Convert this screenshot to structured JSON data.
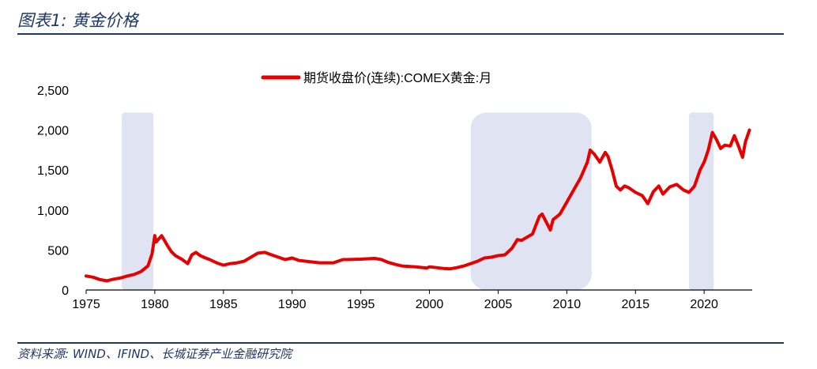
{
  "header": {
    "title": "图表1:  黄金价格"
  },
  "footer": {
    "source": "资料来源: WIND、IFIND、长城证券产业金融研究院"
  },
  "chart_data": {
    "type": "line",
    "title": "",
    "xlabel": "",
    "ylabel": "",
    "xlim": [
      1975,
      2023.5
    ],
    "ylim": [
      0,
      2500
    ],
    "grid": false,
    "legend_position": "top-center",
    "x_ticks": [
      1975,
      1980,
      1985,
      1990,
      1995,
      2000,
      2005,
      2010,
      2015,
      2020
    ],
    "x_tick_labels": [
      "1975",
      "1980",
      "1985",
      "1990",
      "1995",
      "2000",
      "2005",
      "2010",
      "2015",
      "2020"
    ],
    "y_ticks": [
      0,
      500,
      1000,
      1500,
      2000,
      2500
    ],
    "y_tick_labels": [
      "0",
      "500",
      "1,000",
      "1,500",
      "2,000",
      "2,500"
    ],
    "shaded_periods": [
      {
        "start": 1977.6,
        "end": 1979.9
      },
      {
        "start": 2003.0,
        "end": 2011.8
      },
      {
        "start": 2018.9,
        "end": 2020.7
      }
    ],
    "series": [
      {
        "name": "期货收盘价(连续):COMEX黄金:月",
        "color": "#e60000",
        "x": [
          1975.0,
          1975.5,
          1976.0,
          1976.5,
          1977.0,
          1977.5,
          1978.0,
          1978.5,
          1979.0,
          1979.5,
          1979.8,
          1980.0,
          1980.1,
          1980.3,
          1980.5,
          1980.7,
          1980.9,
          1981.2,
          1981.5,
          1982.0,
          1982.4,
          1982.7,
          1983.0,
          1983.3,
          1983.7,
          1984.0,
          1984.5,
          1985.0,
          1985.5,
          1986.0,
          1986.5,
          1987.0,
          1987.5,
          1988.0,
          1988.5,
          1989.0,
          1989.5,
          1990.0,
          1990.5,
          1991.0,
          1992.0,
          1993.0,
          1993.7,
          1994.0,
          1995.0,
          1996.0,
          1996.5,
          1997.0,
          1997.5,
          1998.0,
          1999.0,
          1999.8,
          2000.0,
          2001.0,
          2001.5,
          2002.0,
          2002.5,
          2003.0,
          2003.5,
          2004.0,
          2004.5,
          2005.0,
          2005.5,
          2006.0,
          2006.4,
          2006.7,
          2007.0,
          2007.5,
          2008.0,
          2008.2,
          2008.8,
          2009.0,
          2009.5,
          2010.0,
          2010.5,
          2011.0,
          2011.5,
          2011.7,
          2012.0,
          2012.4,
          2012.8,
          2013.0,
          2013.3,
          2013.6,
          2013.9,
          2014.2,
          2014.5,
          2015.0,
          2015.5,
          2015.9,
          2016.3,
          2016.7,
          2017.0,
          2017.5,
          2018.0,
          2018.5,
          2018.9,
          2019.3,
          2019.7,
          2020.0,
          2020.3,
          2020.6,
          2020.9,
          2021.2,
          2021.5,
          2021.9,
          2022.2,
          2022.5,
          2022.8,
          2023.0,
          2023.2,
          2023.3
        ],
        "y": [
          175,
          160,
          130,
          115,
          135,
          150,
          175,
          195,
          230,
          300,
          450,
          680,
          600,
          640,
          680,
          620,
          560,
          480,
          430,
          380,
          330,
          440,
          470,
          430,
          400,
          380,
          340,
          310,
          330,
          340,
          360,
          410,
          460,
          470,
          440,
          410,
          380,
          400,
          370,
          360,
          340,
          340,
          380,
          380,
          385,
          395,
          380,
          345,
          320,
          300,
          290,
          275,
          290,
          270,
          265,
          280,
          300,
          330,
          360,
          400,
          410,
          430,
          440,
          520,
          630,
          620,
          650,
          700,
          920,
          950,
          750,
          880,
          950,
          1100,
          1250,
          1400,
          1600,
          1750,
          1700,
          1600,
          1720,
          1670,
          1500,
          1300,
          1250,
          1300,
          1280,
          1220,
          1180,
          1080,
          1230,
          1300,
          1200,
          1290,
          1320,
          1250,
          1220,
          1300,
          1500,
          1600,
          1750,
          1970,
          1880,
          1770,
          1810,
          1800,
          1930,
          1800,
          1660,
          1850,
          1950,
          2000
        ]
      }
    ]
  }
}
